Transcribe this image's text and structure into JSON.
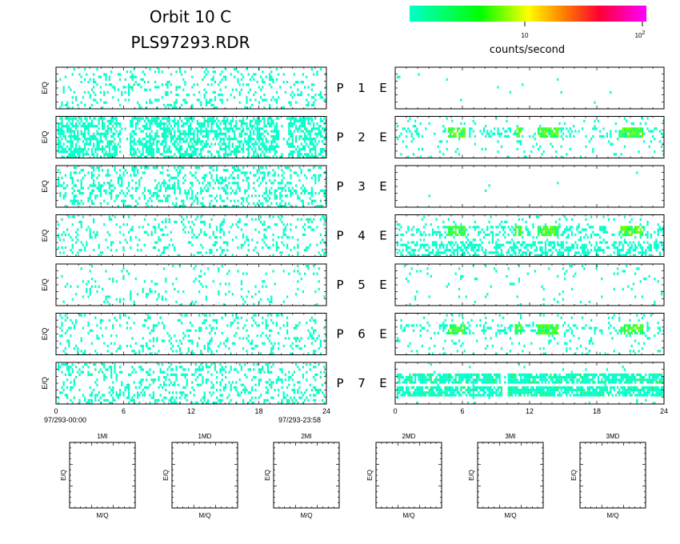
{
  "header": {
    "title_line1": "Orbit 10 C",
    "title_line2": "PLS97293.RDR"
  },
  "colorbar": {
    "tick_10": "10",
    "tick_100_base": "10",
    "tick_100_exp": "2",
    "unit_label": "counts/second",
    "colors": [
      "#00ffcc",
      "#00ff00",
      "#ffff00",
      "#ff8000",
      "#ff0033",
      "#ff00ff"
    ]
  },
  "panels": {
    "ylabel": "E/Q",
    "p_letter": "P",
    "e_letter": "E",
    "rows": [
      "1",
      "2",
      "3",
      "4",
      "5",
      "6",
      "7"
    ]
  },
  "axis": {
    "ticks": [
      "0",
      "6",
      "12",
      "18",
      "24"
    ],
    "start_time": "97/293-00:00",
    "end_time": "97/293-23:58"
  },
  "mass_panels": {
    "titles": [
      "1MI",
      "1MD",
      "2MI",
      "2MD",
      "3MI",
      "3MD"
    ],
    "xlabel": "M/Q",
    "ylabel": "E/Q"
  },
  "chart_data": {
    "type": "heatmap",
    "x_range_hours": [
      0,
      24
    ],
    "x_label": "",
    "color_scale": "log",
    "color_unit": "counts/second",
    "color_range": [
      1,
      100
    ],
    "left_column_density": [
      0.16,
      0.55,
      0.28,
      0.16,
      0.07,
      0.16,
      0.24
    ],
    "right_column_density": [
      0.004,
      0.18,
      0.003,
      0.3,
      0.04,
      0.22,
      0.55
    ],
    "right_column_bright_intervals_hours": [
      [
        4.5,
        6.0
      ],
      [
        10.5,
        11.2
      ],
      [
        12.5,
        14.5
      ],
      [
        20.0,
        22.0
      ]
    ]
  }
}
